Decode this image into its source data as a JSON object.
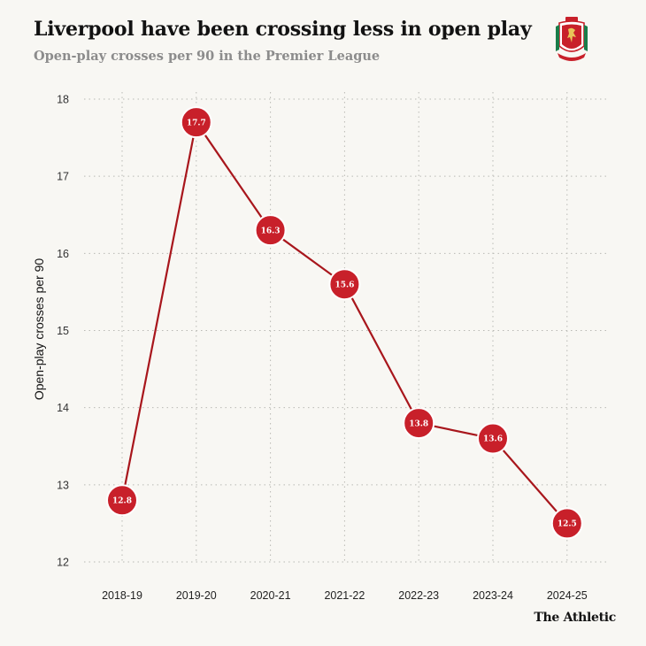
{
  "header": {
    "title": "Liverpool have been crossing less in open play",
    "subtitle": "Open-play crosses per 90 in the Premier League"
  },
  "logo": {
    "icon": "liverpool-crest-icon",
    "brand_text": "The Athletic"
  },
  "colors": {
    "background": "#f8f7f3",
    "line": "#a8161c",
    "marker_fill": "#c8202a",
    "title": "#121212",
    "subtitle": "#8c8c8c"
  },
  "chart_data": {
    "type": "line",
    "title": "Liverpool have been crossing less in open play",
    "subtitle": "Open-play crosses per 90 in the Premier League",
    "xlabel": "",
    "ylabel": "Open-play crosses per 90",
    "categories": [
      "2018-19",
      "2019-20",
      "2020-21",
      "2021-22",
      "2022-23",
      "2023-24",
      "2024-25"
    ],
    "values": [
      12.8,
      17.7,
      16.3,
      15.6,
      13.8,
      13.6,
      12.5
    ],
    "data_labels": [
      "12.8",
      "17.7",
      "16.3",
      "15.6",
      "13.8",
      "13.6",
      "12.5"
    ],
    "ylim": [
      12,
      18
    ],
    "yticks": [
      12,
      13,
      14,
      15,
      16,
      17,
      18
    ],
    "grid": "dotted both axes",
    "legend": "none"
  }
}
